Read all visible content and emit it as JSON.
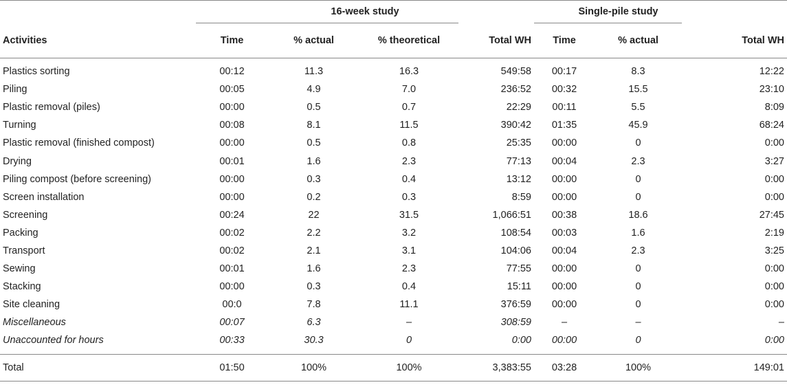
{
  "table": {
    "group_headers": {
      "study_16_week": "16-week study",
      "single_pile": "Single-pile study"
    },
    "columns": {
      "activities": "Activities",
      "time_16": "Time",
      "pct_actual_16": "% actual",
      "pct_theoretical_16": "% theoretical",
      "total_wh_16": "Total WH",
      "time_single": "Time",
      "pct_actual_single": "% actual",
      "total_wh_single": "Total WH"
    },
    "rows": [
      {
        "activity": "Plastics sorting",
        "time": "00:12",
        "actual": "11.3",
        "theoretical": "16.3",
        "wh": "549:58",
        "s_time": "00:17",
        "s_actual": "8.3",
        "s_wh": "12:22"
      },
      {
        "activity": "Piling",
        "time": "00:05",
        "actual": "4.9",
        "theoretical": "7.0",
        "wh": "236:52",
        "s_time": "00:32",
        "s_actual": "15.5",
        "s_wh": "23:10"
      },
      {
        "activity": "Plastic removal (piles)",
        "time": "00:00",
        "actual": "0.5",
        "theoretical": "0.7",
        "wh": "22:29",
        "s_time": "00:11",
        "s_actual": "5.5",
        "s_wh": "8:09"
      },
      {
        "activity": "Turning",
        "time": "00:08",
        "actual": "8.1",
        "theoretical": "11.5",
        "wh": "390:42",
        "s_time": "01:35",
        "s_actual": "45.9",
        "s_wh": "68:24"
      },
      {
        "activity": "Plastic removal (finished compost)",
        "time": "00:00",
        "actual": "0.5",
        "theoretical": "0.8",
        "wh": "25:35",
        "s_time": "00:00",
        "s_actual": "0",
        "s_wh": "0:00"
      },
      {
        "activity": "Drying",
        "time": "00:01",
        "actual": "1.6",
        "theoretical": "2.3",
        "wh": "77:13",
        "s_time": "00:04",
        "s_actual": "2.3",
        "s_wh": "3:27"
      },
      {
        "activity": "Piling compost (before screening)",
        "time": "00:00",
        "actual": "0.3",
        "theoretical": "0.4",
        "wh": "13:12",
        "s_time": "00:00",
        "s_actual": "0",
        "s_wh": "0:00"
      },
      {
        "activity": "Screen installation",
        "time": "00:00",
        "actual": "0.2",
        "theoretical": "0.3",
        "wh": "8:59",
        "s_time": "00:00",
        "s_actual": "0",
        "s_wh": "0:00"
      },
      {
        "activity": "Screening",
        "time": "00:24",
        "actual": "22",
        "theoretical": "31.5",
        "wh": "1,066:51",
        "s_time": "00:38",
        "s_actual": "18.6",
        "s_wh": "27:45"
      },
      {
        "activity": "Packing",
        "time": "00:02",
        "actual": "2.2",
        "theoretical": "3.2",
        "wh": "108:54",
        "s_time": "00:03",
        "s_actual": "1.6",
        "s_wh": "2:19"
      },
      {
        "activity": "Transport",
        "time": "00:02",
        "actual": "2.1",
        "theoretical": "3.1",
        "wh": "104:06",
        "s_time": "00:04",
        "s_actual": "2.3",
        "s_wh": "3:25"
      },
      {
        "activity": "Sewing",
        "time": "00:01",
        "actual": "1.6",
        "theoretical": "2.3",
        "wh": "77:55",
        "s_time": "00:00",
        "s_actual": "0",
        "s_wh": "0:00"
      },
      {
        "activity": "Stacking",
        "time": "00:00",
        "actual": "0.3",
        "theoretical": "0.4",
        "wh": "15:11",
        "s_time": "00:00",
        "s_actual": "0",
        "s_wh": "0:00"
      },
      {
        "activity": "Site cleaning",
        "time": "00:0",
        "actual": "7.8",
        "theoretical": "11.1",
        "wh": "376:59",
        "s_time": "00:00",
        "s_actual": "0",
        "s_wh": "0:00"
      },
      {
        "activity": "Miscellaneous",
        "time": "00:07",
        "actual": "6.3",
        "theoretical": "–",
        "wh": "308:59",
        "s_time": "–",
        "s_actual": "–",
        "s_wh": "–",
        "italic": true
      },
      {
        "activity": "Unaccounted for hours",
        "time": "00:33",
        "actual": "30.3",
        "theoretical": "0",
        "wh": "0:00",
        "s_time": "00:00",
        "s_actual": "0",
        "s_wh": "0:00",
        "italic": true
      }
    ],
    "total": {
      "activity": "Total",
      "time": "01:50",
      "actual": "100%",
      "theoretical": "100%",
      "wh": "3,383:55",
      "s_time": "03:28",
      "s_actual": "100%",
      "s_wh": "149:01"
    }
  }
}
